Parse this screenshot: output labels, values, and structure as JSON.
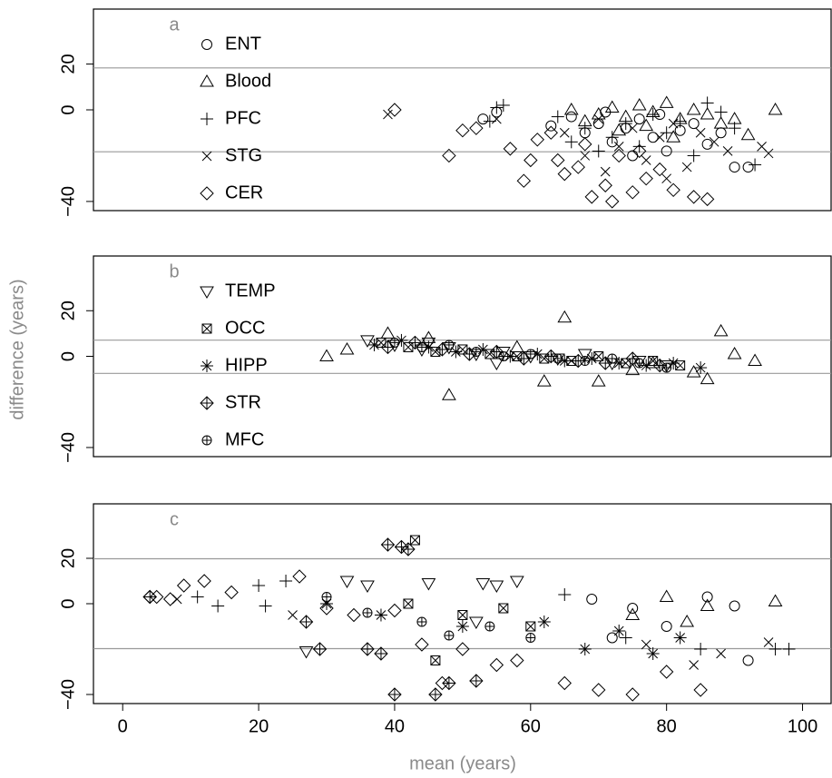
{
  "chart_data": [
    {
      "type": "scatter",
      "label": "a",
      "xlim": [
        -4.3,
        104.2
      ],
      "ylim": [
        -44,
        44
      ],
      "yticks": [
        {
          "value": -40,
          "label": "−40"
        },
        0,
        20
      ],
      "hlines": [
        18.3,
        -18.3
      ],
      "hline_color": "#999999",
      "color": "#000000",
      "series": [
        {
          "name": "ENT",
          "marker": "circle",
          "x": [
            53,
            55,
            63,
            66,
            68,
            70,
            72,
            74,
            76,
            78,
            80,
            82,
            84,
            86,
            88,
            90,
            92,
            75,
            79,
            71
          ],
          "values": [
            -4,
            -1,
            -7,
            -3,
            -10,
            -6,
            -14,
            -8,
            -4,
            -12,
            -18,
            -9,
            -6,
            -15,
            -10,
            -25,
            -25,
            -20,
            -2,
            -1
          ]
        },
        {
          "name": "Blood",
          "marker": "triangle",
          "x": [
            66,
            68,
            70,
            72,
            74,
            76,
            78,
            80,
            82,
            84,
            86,
            88,
            90,
            92,
            96,
            77,
            73,
            81
          ],
          "values": [
            0,
            -5,
            -2,
            1,
            -3,
            2,
            -1,
            3,
            -4,
            0,
            -2,
            -6,
            -4,
            -11,
            0,
            -7,
            -9,
            -12
          ]
        },
        {
          "name": "PFC",
          "marker": "plus",
          "x": [
            55,
            56,
            54,
            64,
            68,
            72,
            74,
            76,
            78,
            80,
            82,
            84,
            86,
            88,
            90,
            93,
            70,
            66
          ],
          "values": [
            1,
            2,
            -5,
            -3,
            -8,
            -12,
            -6,
            -16,
            -2,
            -10,
            -5,
            -20,
            3,
            -1,
            -8,
            -24,
            -18,
            -14
          ]
        },
        {
          "name": "STG",
          "marker": "x",
          "x": [
            39,
            55,
            65,
            68,
            70,
            73,
            75,
            77,
            79,
            81,
            83,
            85,
            87,
            89,
            94,
            95,
            71,
            80
          ],
          "values": [
            -2,
            -4,
            -10,
            -20,
            -4,
            -16,
            -8,
            -22,
            -12,
            -6,
            -25,
            -10,
            -14,
            -18,
            -16,
            -19,
            -27,
            -30
          ]
        },
        {
          "name": "CER",
          "marker": "diamond",
          "x": [
            40,
            48,
            50,
            52,
            57,
            59,
            61,
            63,
            65,
            67,
            69,
            71,
            73,
            75,
            77,
            79,
            81,
            84,
            86,
            68,
            72,
            64,
            76,
            60
          ],
          "values": [
            0,
            -20,
            -9,
            -8,
            -17,
            -31,
            -13,
            -10,
            -28,
            -25,
            -38,
            -33,
            -20,
            -36,
            -30,
            -26,
            -35,
            -38,
            -39,
            -15,
            -40,
            -22,
            -18,
            -22
          ]
        }
      ]
    },
    {
      "type": "scatter",
      "label": "b",
      "ylabel": "difference (years)",
      "xlim": [
        -4.3,
        104.2
      ],
      "ylim": [
        -44,
        44
      ],
      "yticks": [
        {
          "value": -40,
          "label": "−40"
        },
        0,
        20
      ],
      "hlines": [
        7.1,
        -7.5
      ],
      "hline_color": "#999999",
      "color": "#000000",
      "series": [
        {
          "name": "TEMP",
          "marker": "invtriangle",
          "x": [
            36,
            40,
            44,
            48,
            52,
            56,
            60,
            64,
            68,
            72,
            76,
            80,
            55,
            45
          ],
          "values": [
            7,
            5,
            3,
            4,
            1,
            2,
            0,
            -1,
            1,
            -3,
            -2,
            -4,
            -3,
            6
          ]
        },
        {
          "name": "OCC",
          "marker": "boxx",
          "x": [
            38,
            42,
            46,
            50,
            54,
            58,
            62,
            66,
            70,
            74,
            78,
            82
          ],
          "values": [
            6,
            4,
            2,
            3,
            1,
            0,
            -1,
            -2,
            0,
            -3,
            -2,
            -4
          ]
        },
        {
          "name": "HIPP",
          "marker": "asterisk",
          "x": [
            37,
            41,
            45,
            49,
            53,
            57,
            61,
            65,
            69,
            73,
            77,
            81,
            85
          ],
          "values": [
            5,
            7,
            4,
            2,
            3,
            0,
            1,
            -2,
            -1,
            -3,
            -4,
            -3,
            -5
          ]
        },
        {
          "name": "STR",
          "marker": "diamondplus",
          "x": [
            39,
            43,
            47,
            51,
            55,
            59,
            63,
            67,
            71,
            75,
            79
          ],
          "values": [
            4,
            6,
            3,
            1,
            2,
            -1,
            0,
            -2,
            -3,
            -1,
            -4
          ]
        },
        {
          "name": "MFC",
          "marker": "circleplus",
          "x": [
            40,
            44,
            48,
            52,
            56,
            60,
            64,
            68,
            72,
            76,
            80
          ],
          "values": [
            6,
            4,
            5,
            2,
            0,
            1,
            -1,
            -2,
            -1,
            -3,
            -5
          ]
        },
        {
          "marker": "triangle",
          "x": [
            30,
            33,
            48,
            65,
            88,
            93,
            90,
            86,
            70,
            62,
            78,
            84,
            39,
            45,
            58,
            75
          ],
          "values": [
            0,
            3,
            -17,
            17,
            11,
            -2,
            1,
            -10,
            -11,
            -11,
            -3,
            -7,
            10,
            8,
            4,
            -6
          ]
        }
      ]
    },
    {
      "type": "scatter",
      "label": "c",
      "xlabel": "mean (years)",
      "xlim": [
        -4.3,
        104.2
      ],
      "ylim": [
        -44,
        44
      ],
      "xticks": [
        0,
        20,
        40,
        60,
        80,
        100
      ],
      "yticks": [
        {
          "value": -40,
          "label": "−40"
        },
        0,
        20
      ],
      "hlines": [
        19.8,
        -19.8
      ],
      "hline_color": "#999999",
      "color": "#000000",
      "series": [
        {
          "marker": "circle",
          "x": [
            69,
            75,
            86,
            90,
            92,
            80,
            72
          ],
          "values": [
            2,
            -2,
            3,
            -1,
            -25,
            -10,
            -15
          ]
        },
        {
          "marker": "triangle",
          "x": [
            80,
            86,
            96,
            75,
            83
          ],
          "values": [
            3,
            -1,
            1,
            -5,
            -8
          ]
        },
        {
          "marker": "plus",
          "x": [
            20,
            21,
            11,
            14,
            24,
            65,
            85,
            96,
            98,
            74
          ],
          "values": [
            8,
            -1,
            3,
            -1,
            10,
            4,
            -20,
            -20,
            -20,
            -15
          ]
        },
        {
          "marker": "x",
          "x": [
            8,
            25,
            84,
            88,
            95,
            77
          ],
          "values": [
            2,
            -5,
            -27,
            -22,
            -17,
            -18
          ]
        },
        {
          "marker": "diamond",
          "x": [
            4,
            5,
            7,
            9,
            12,
            16,
            26,
            30,
            34,
            40,
            44,
            50,
            55,
            58,
            65,
            70,
            75,
            80,
            85,
            47
          ],
          "values": [
            3,
            3,
            2,
            8,
            10,
            5,
            12,
            -2,
            -5,
            -3,
            -18,
            -20,
            -27,
            -25,
            -35,
            -38,
            -40,
            -30,
            -38,
            -35
          ]
        },
        {
          "marker": "invtriangle",
          "x": [
            33,
            36,
            45,
            53,
            55,
            58,
            52,
            27
          ],
          "values": [
            10,
            8,
            9,
            9,
            8,
            10,
            -8,
            -21
          ]
        },
        {
          "marker": "boxx",
          "x": [
            43,
            46,
            50,
            56,
            60,
            42
          ],
          "values": [
            28,
            -25,
            -5,
            -2,
            -10,
            0
          ]
        },
        {
          "marker": "asterisk",
          "x": [
            30,
            38,
            50,
            62,
            68,
            73,
            78,
            82
          ],
          "values": [
            0,
            -5,
            -10,
            -8,
            -20,
            -12,
            -22,
            -15
          ]
        },
        {
          "marker": "diamondplus",
          "x": [
            4,
            39,
            41,
            42,
            40,
            46,
            48,
            52,
            29,
            36,
            38,
            27
          ],
          "values": [
            3,
            26,
            25,
            24,
            -40,
            -40,
            -35,
            -34,
            -20,
            -20,
            -22,
            -8
          ]
        },
        {
          "marker": "circleplus",
          "x": [
            30,
            36,
            44,
            48,
            54,
            60
          ],
          "values": [
            3,
            -4,
            -8,
            -14,
            -10,
            -15
          ]
        }
      ]
    }
  ]
}
